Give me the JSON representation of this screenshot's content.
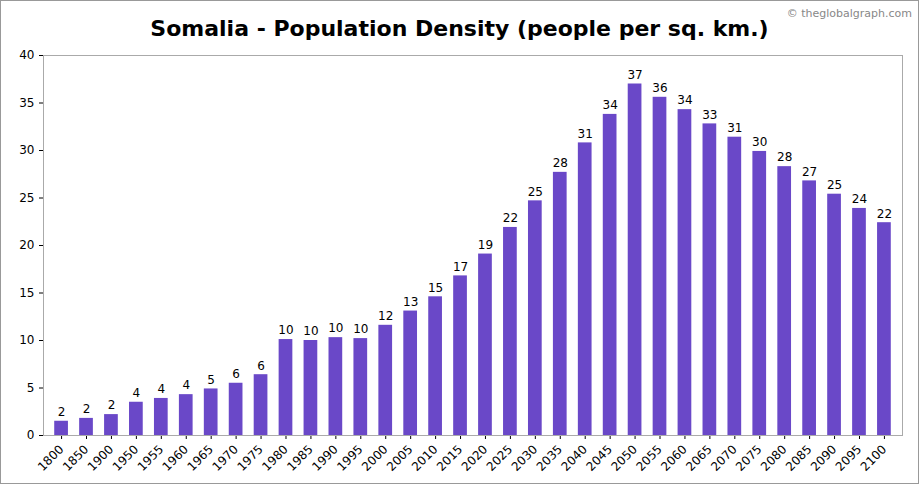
{
  "chart_data": {
    "type": "bar",
    "title": "Somalia - Population Density (people per sq. km.)",
    "annotations": [
      "© theglobalgraph.com"
    ],
    "categories": [
      "1800",
      "1850",
      "1900",
      "1950",
      "1955",
      "1960",
      "1965",
      "1970",
      "1975",
      "1980",
      "1985",
      "1990",
      "1995",
      "2000",
      "2005",
      "2010",
      "2015",
      "2020",
      "2025",
      "2030",
      "2035",
      "2040",
      "2045",
      "2050",
      "2055",
      "2060",
      "2065",
      "2070",
      "2075",
      "2080",
      "2085",
      "2090",
      "2095",
      "2100"
    ],
    "values": [
      1.5,
      1.8,
      2.2,
      3.5,
      3.9,
      4.3,
      4.9,
      5.5,
      6.4,
      10.1,
      10.0,
      10.3,
      10.2,
      11.6,
      13.1,
      14.6,
      16.8,
      19.1,
      21.9,
      24.7,
      27.7,
      30.8,
      33.8,
      37.0,
      35.6,
      34.3,
      32.8,
      31.4,
      29.9,
      28.3,
      26.8,
      25.4,
      23.9,
      22.4
    ],
    "value_labels": [
      "2",
      "2",
      "2",
      "4",
      "4",
      "4",
      "5",
      "6",
      "6",
      "10",
      "10",
      "10",
      "10",
      "12",
      "13",
      "15",
      "17",
      "19",
      "22",
      "25",
      "28",
      "31",
      "34",
      "37",
      "36",
      "34",
      "33",
      "31",
      "30",
      "28",
      "27",
      "25",
      "24",
      "22"
    ],
    "color": "#6a48c8",
    "ylim": [
      0,
      40
    ],
    "yticks": [
      0,
      5,
      10,
      15,
      20,
      25,
      30,
      35,
      40
    ],
    "grid": false,
    "data_labels": true
  }
}
